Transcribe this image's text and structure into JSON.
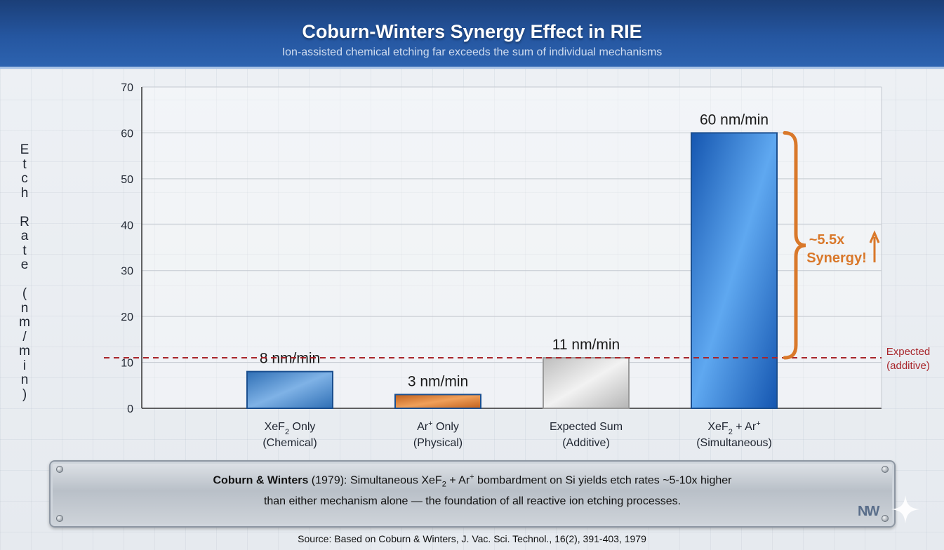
{
  "header": {
    "title": "Coburn-Winters Synergy Effect in RIE",
    "subtitle": "Ion-assisted chemical etching far exceeds the sum of individual mechanisms"
  },
  "chart_data": {
    "type": "bar",
    "ylabel": "Etch Rate (nm/min)",
    "ylim": [
      0,
      70
    ],
    "yticks": [
      0,
      10,
      20,
      30,
      40,
      50,
      60,
      70
    ],
    "grid": true,
    "categories": [
      {
        "line1": "XeF",
        "line1_sub": "2",
        "line1_rest": " Only",
        "line2": "(Chemical)"
      },
      {
        "line1": "Ar",
        "line1_sup": "+",
        "line1_rest": " Only",
        "line2": "(Physical)"
      },
      {
        "line1": "Expected Sum",
        "line2": "(Additive)"
      },
      {
        "line1": "XeF",
        "line1_sub": "2",
        "line1_rest": " + Ar",
        "line1_sup": "+",
        "line2": "(Simultaneous)"
      }
    ],
    "values": [
      8,
      3,
      11,
      60
    ],
    "data_labels": [
      "8 nm/min",
      "3 nm/min",
      "11 nm/min",
      "60 nm/min"
    ],
    "bar_colors": [
      "#3f7fc2",
      "#d9782a",
      "#c8c8c8",
      "#1f6cc9"
    ],
    "reference_line": {
      "value": 11,
      "label_line1": "Expected",
      "label_line2": "(additive)",
      "color": "#a8242a"
    },
    "annotation": {
      "line1": "~5.5x",
      "line2": "Synergy!",
      "from": 11,
      "to": 60,
      "color": "#d9782a"
    }
  },
  "note": {
    "bold": "Coburn & Winters",
    "part1": " (1979): Simultaneous XeF",
    "sub": "2",
    "part2": " + Ar",
    "sup": "+",
    "part3": " bombardment on Si yields etch rates ~5-10x higher",
    "line2": "than either mechanism alone — the foundation of all reactive ion etching processes."
  },
  "logo": "NW",
  "source": "Source: Based on Coburn & Winters, J. Vac. Sci. Technol., 16(2), 391-403, 1979"
}
